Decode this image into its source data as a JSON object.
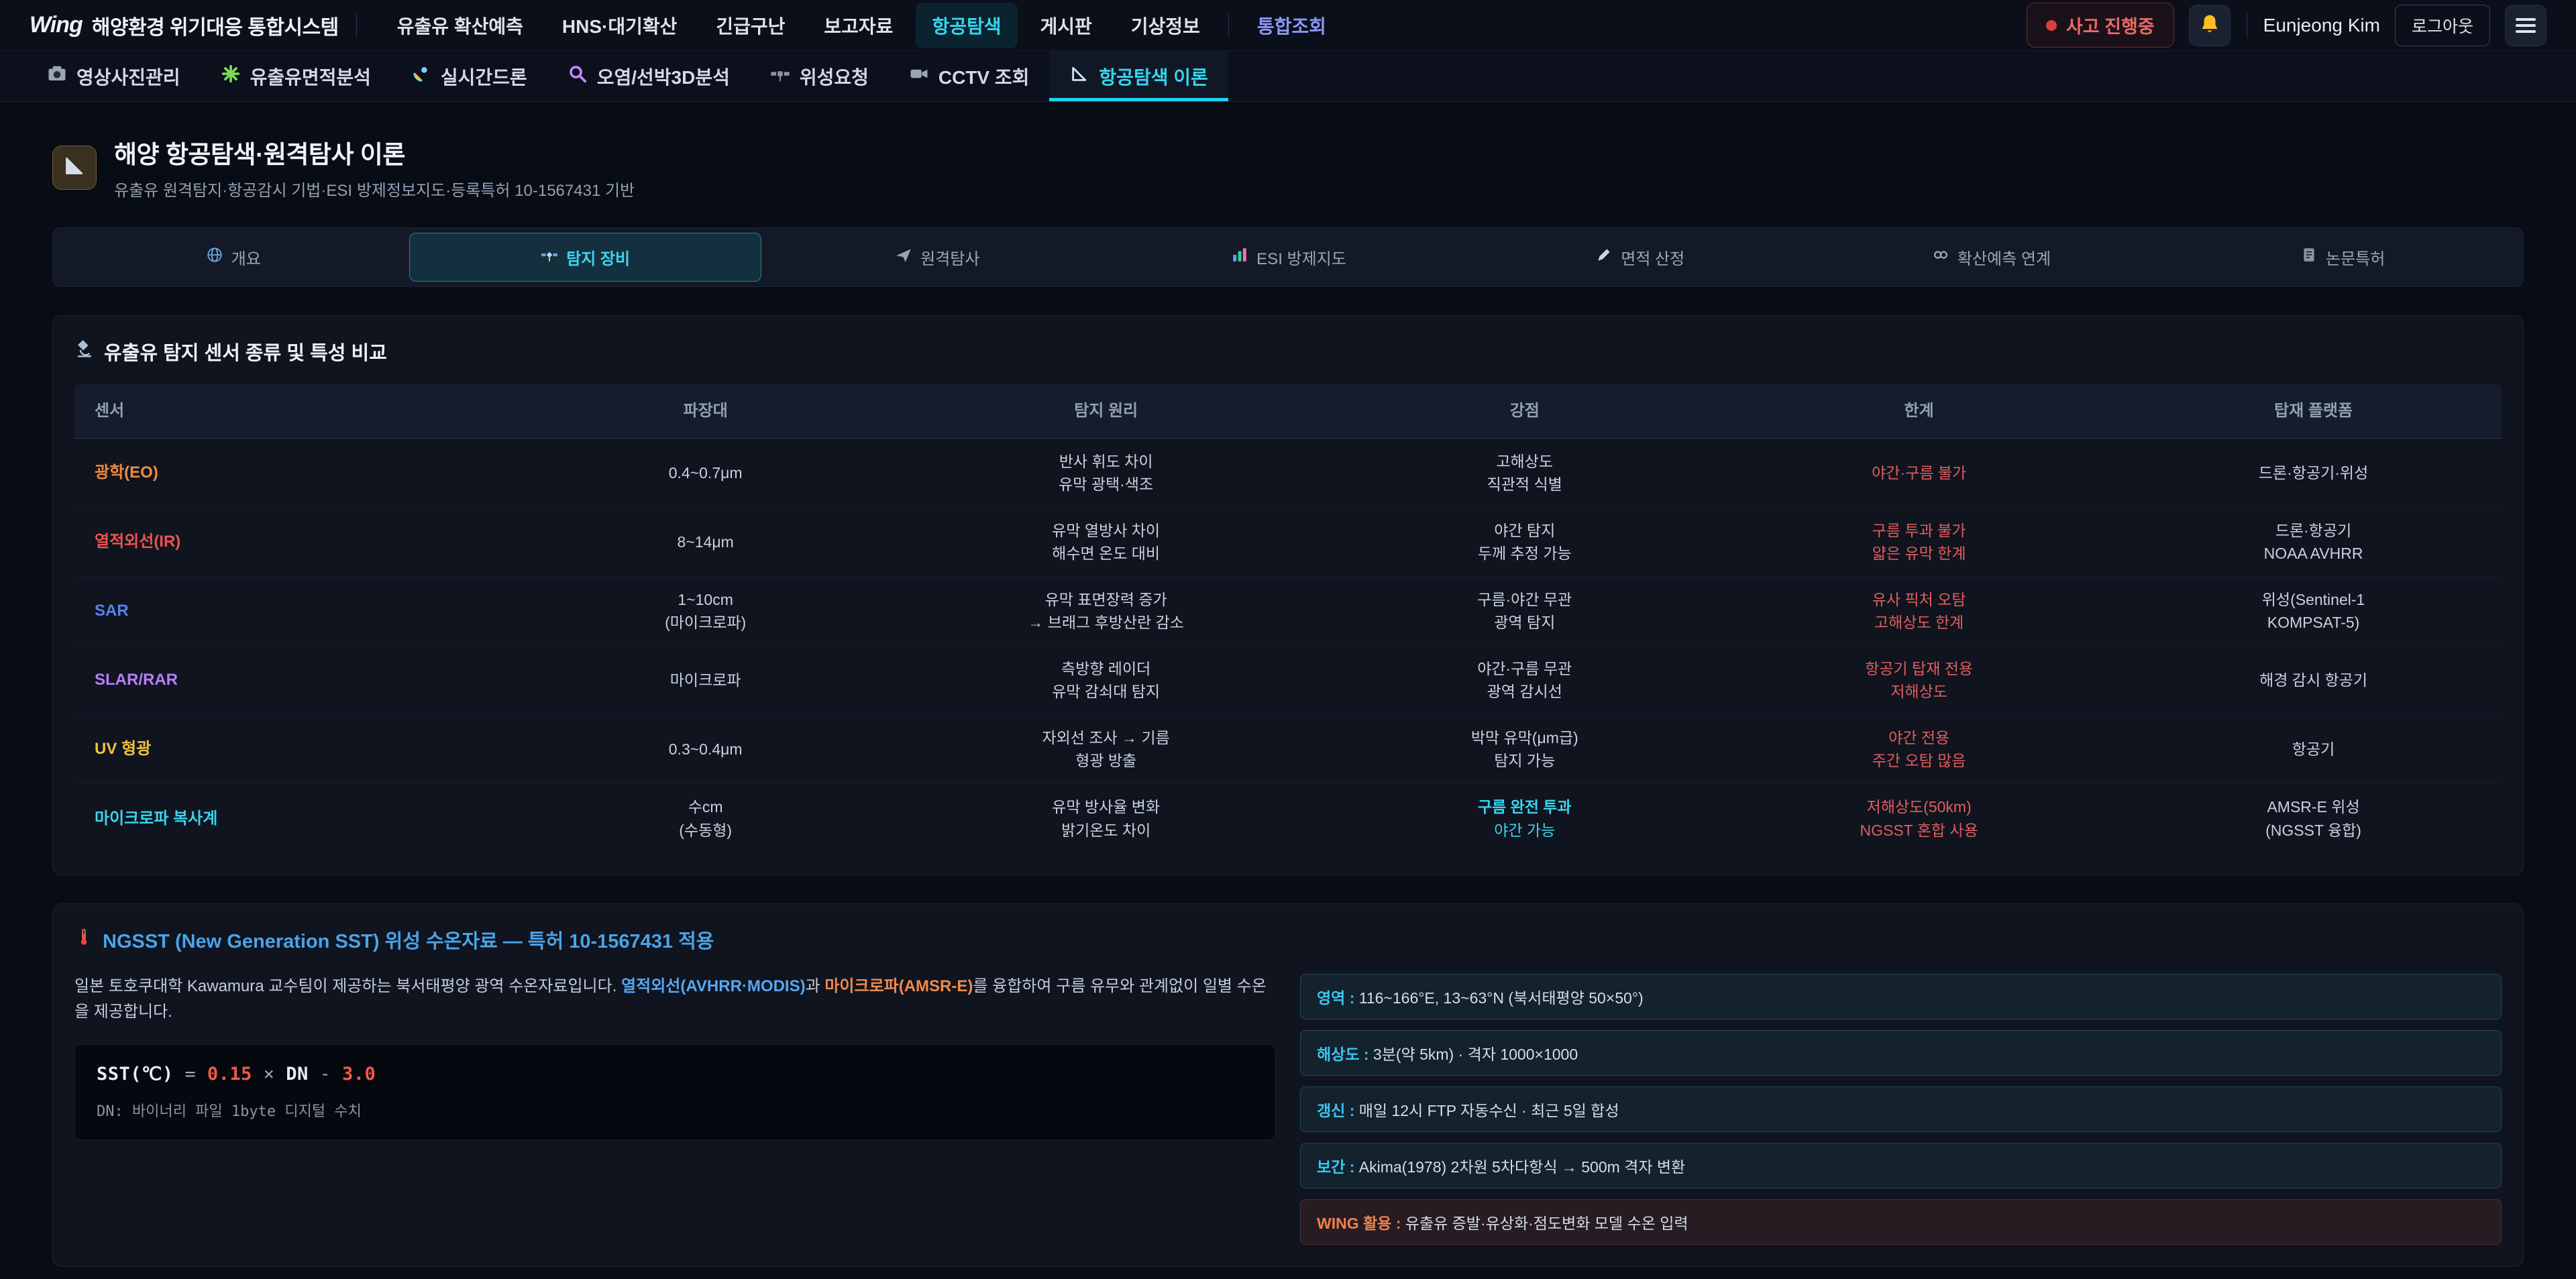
{
  "theme": {
    "accent_cyan": "#22d3ee",
    "nav_indigo": "#8b96f7",
    "danger_red": "#e25d5d",
    "orange": "#f08a4b",
    "link_blue": "#58a6f0",
    "ngsst_blue": "#4aa3e8"
  },
  "topbar": {
    "logo_mark": "Wing",
    "logo_text": "해양환경 위기대응 통합시스템",
    "nav": [
      {
        "label": "유출유 확산예측"
      },
      {
        "label": "HNS·대기확산"
      },
      {
        "label": "긴급구난"
      },
      {
        "label": "보고자료"
      },
      {
        "label": "항공탐색",
        "active": true
      },
      {
        "label": "게시판"
      },
      {
        "label": "기상정보"
      },
      {
        "label": "통합조회",
        "style": "accent-indigo",
        "divider_before": true
      }
    ],
    "incident_badge": "사고 진행중",
    "user_name": "Eunjeong Kim",
    "logout_label": "로그아웃"
  },
  "subtabs": [
    {
      "label": "영상사진관리",
      "icon": "camera-icon"
    },
    {
      "label": "유출유면적분석",
      "icon": "asterisk-icon"
    },
    {
      "label": "실시간드론",
      "icon": "satellite-dish-icon"
    },
    {
      "label": "오염/선박3D분석",
      "icon": "magnifier-icon"
    },
    {
      "label": "위성요청",
      "icon": "satellite-icon"
    },
    {
      "label": "CCTV 조회",
      "icon": "cctv-icon"
    },
    {
      "label": "항공탐색 이론",
      "icon": "ruler-icon",
      "active": true
    }
  ],
  "page_header": {
    "title": "해양 항공탐색·원격탐사 이론",
    "subtitle": "유출유 원격탐지·항공감시 기법·ESI 방제정보지도·등록특허 10-1567431 기반"
  },
  "section_tabs": [
    {
      "label": "개요",
      "icon": "globe-icon"
    },
    {
      "label": "탐지 장비",
      "icon": "satellite2-icon",
      "active": true
    },
    {
      "label": "원격탐사",
      "icon": "plane-icon"
    },
    {
      "label": "ESI 방제지도",
      "icon": "chart-icon"
    },
    {
      "label": "면적 산정",
      "icon": "pencil-icon"
    },
    {
      "label": "확산예측 연계",
      "icon": "link-icon"
    },
    {
      "label": "논문특허",
      "icon": "doc-icon"
    }
  ],
  "sensor_table": {
    "title": "유출유 탐지 센서 종류 및 특성 비교",
    "columns": [
      "센서",
      "파장대",
      "탐지 원리",
      "강점",
      "한계",
      "탑재 플랫폼"
    ],
    "rows": [
      {
        "sensor": {
          "text": "광학(EO)",
          "color": "#ef8a3f"
        },
        "cells": [
          {
            "lines": [
              "0.4~0.7μm"
            ]
          },
          {
            "lines": [
              "반사 휘도 차이",
              "유막 광택·색조"
            ]
          },
          {
            "lines": [
              "고해상도",
              "직관적 식별"
            ]
          },
          {
            "lines": [
              "야간·구름 불가"
            ],
            "color": "#e25d5d"
          },
          {
            "lines": [
              "드론·항공기·위성"
            ]
          }
        ]
      },
      {
        "sensor": {
          "text": "열적외선(IR)",
          "color": "#ef5350"
        },
        "cells": [
          {
            "lines": [
              "8~14μm"
            ]
          },
          {
            "lines": [
              "유막 열방사 차이",
              "해수면 온도 대비"
            ]
          },
          {
            "lines": [
              "야간 탐지",
              "두께 추정 가능"
            ]
          },
          {
            "lines": [
              "구름 투과 불가",
              "얇은 유막 한계"
            ],
            "color": "#e25d5d"
          },
          {
            "lines": [
              "드론·항공기",
              "NOAA AVHRR"
            ]
          }
        ]
      },
      {
        "sensor": {
          "text": "SAR",
          "color": "#5584f0"
        },
        "cells": [
          {
            "lines": [
              "1~10cm",
              "(마이크로파)"
            ]
          },
          {
            "lines": [
              "유막 표면장력 증가",
              "→ 브래그 후방산란 감소"
            ]
          },
          {
            "lines": [
              "구름·야간 무관",
              "광역 탐지"
            ]
          },
          {
            "lines": [
              "유사 픽처 오탐",
              "고해상도 한계"
            ],
            "color": "#e25d5d"
          },
          {
            "lines": [
              "위성(Sentinel-1",
              "KOMPSAT-5)"
            ]
          }
        ]
      },
      {
        "sensor": {
          "text": "SLAR/RAR",
          "color": "#bd7bf7"
        },
        "cells": [
          {
            "lines": [
              "마이크로파"
            ]
          },
          {
            "lines": [
              "측방향 레이더",
              "유막 감쇠대 탐지"
            ]
          },
          {
            "lines": [
              "야간·구름 무관",
              "광역 감시선"
            ]
          },
          {
            "lines": [
              "항공기 탑재 전용",
              "저해상도"
            ],
            "color": "#e25d5d"
          },
          {
            "lines": [
              "해경 감시 항공기"
            ]
          }
        ]
      },
      {
        "sensor": {
          "text": "UV 형광",
          "color": "#f3c13d"
        },
        "cells": [
          {
            "lines": [
              "0.3~0.4μm"
            ]
          },
          {
            "lines": [
              "자외선 조사 → 기름",
              "형광 방출"
            ]
          },
          {
            "lines": [
              "박막 유막(μm급)",
              "탐지 가능"
            ]
          },
          {
            "lines": [
              "야간 전용",
              "주간 오탐 많음"
            ],
            "color": "#e25d5d"
          },
          {
            "lines": [
              "항공기"
            ]
          }
        ]
      },
      {
        "sensor": {
          "text": "마이크로파 복사계",
          "color": "#38d5ee"
        },
        "cells": [
          {
            "lines": [
              "수cm",
              "(수동형)"
            ]
          },
          {
            "lines": [
              "유막 방사율 변화",
              "밝기온도 차이"
            ]
          },
          {
            "lines": [
              "구름 완전 투과",
              "야간 가능"
            ],
            "color": "#38d5ee",
            "bold_first": true
          },
          {
            "lines": [
              "저해상도(50km)",
              "NGSST 혼합 사용"
            ],
            "color": "#e25d5d"
          },
          {
            "lines": [
              "AMSR-E 위성",
              "(NGSST 융합)"
            ]
          }
        ]
      }
    ]
  },
  "ngsst": {
    "title": "NGSST (New Generation SST) 위성 수온자료 — 특허 10-1567431 적용",
    "description_parts": [
      {
        "text": "일본 토호쿠대학 Kawamura 교수팀이 제공하는 북서태평양 광역 수온자료입니다. "
      },
      {
        "text": "열적외선(AVHRR·MODIS)",
        "style": "seg-blue"
      },
      {
        "text": "과 "
      },
      {
        "text": "마이크로파(AMSR-E)",
        "style": "seg-orange"
      },
      {
        "text": "를 융합하여 구름 유무와 관계없이 일별 수온을 제공합니다."
      }
    ],
    "formula_tokens": [
      {
        "t": "SST(℃) ",
        "c": "w"
      },
      {
        "t": "= ",
        "c": "g"
      },
      {
        "t": "0.15",
        "c": "r"
      },
      {
        "t": " × ",
        "c": "g"
      },
      {
        "t": "DN",
        "c": "w"
      },
      {
        "t": " - ",
        "c": "g"
      },
      {
        "t": "3.0",
        "c": "r"
      }
    ],
    "formula_note": "DN: 바이너리 파일 1byte 디지털 수치",
    "info_items": [
      {
        "label": "영역",
        "value": "116~166°E, 13~63°N (북서태평양 50×50°)"
      },
      {
        "label": "해상도",
        "value": "3분(약 5km) · 격자 1000×1000"
      },
      {
        "label": "갱신",
        "value": "매일 12시 FTP 자동수신 · 최근 5일 합성"
      },
      {
        "label": "보간",
        "value": "Akima(1978) 2차원 5차다항식 → 500m 격자 변환"
      },
      {
        "label": "WING 활용",
        "value": "유출유 증발·유상화·점도변화 모델 수온 입력",
        "style": "orange"
      }
    ]
  }
}
